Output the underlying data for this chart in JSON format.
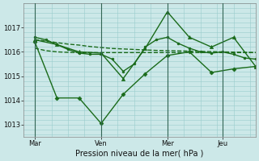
{
  "background_color": "#cce8e8",
  "grid_color": "#99cccc",
  "line_color": "#1a6b1a",
  "xlabel": "Pression niveau de la mer( hPa )",
  "ylim": [
    1012.5,
    1018.0
  ],
  "yticks": [
    1013,
    1014,
    1015,
    1016,
    1017
  ],
  "xtick_labels": [
    "Mar",
    "Ven",
    "Mer",
    "Jeu"
  ],
  "xtick_positions": [
    2,
    14,
    26,
    36
  ],
  "vline_positions": [
    2,
    14,
    26,
    36
  ],
  "xlim": [
    0,
    42
  ],
  "series": [
    {
      "x": [
        2,
        4,
        6,
        8,
        10,
        12,
        14,
        16,
        18,
        20,
        22,
        24,
        26,
        28,
        30,
        32,
        34,
        36,
        38,
        40,
        42
      ],
      "y": [
        1016.15,
        1016.05,
        1016.0,
        1015.98,
        1015.97,
        1015.97,
        1015.97,
        1015.97,
        1015.97,
        1015.97,
        1015.97,
        1015.97,
        1015.97,
        1015.97,
        1015.97,
        1015.97,
        1015.97,
        1015.97,
        1015.97,
        1015.97,
        1015.97
      ],
      "style": "--",
      "marker": null,
      "markersize": 0,
      "linewidth": 1.0
    },
    {
      "x": [
        2,
        4,
        6,
        8,
        10,
        12,
        14,
        16,
        18,
        20,
        22,
        24,
        26,
        28,
        30,
        32,
        34,
        36,
        38,
        40,
        42
      ],
      "y": [
        1016.5,
        1016.45,
        1016.38,
        1016.32,
        1016.28,
        1016.22,
        1016.18,
        1016.14,
        1016.12,
        1016.1,
        1016.08,
        1016.06,
        1016.05,
        1016.04,
        1016.03,
        1016.02,
        1016.01,
        1016.0,
        1015.99,
        1015.98,
        1015.97
      ],
      "style": "--",
      "marker": null,
      "markersize": 0,
      "linewidth": 1.0
    },
    {
      "x": [
        2,
        4,
        6,
        8,
        10,
        12,
        14,
        16,
        18,
        20,
        22,
        24,
        26,
        28,
        30,
        32,
        34,
        36,
        38,
        40,
        42
      ],
      "y": [
        1016.6,
        1016.5,
        1016.3,
        1016.1,
        1015.95,
        1015.9,
        1015.9,
        1015.7,
        1015.2,
        1015.5,
        1016.2,
        1016.5,
        1016.6,
        1016.35,
        1016.15,
        1016.0,
        1015.95,
        1016.0,
        1015.9,
        1015.75,
        1015.7
      ],
      "style": "-",
      "marker": "o",
      "markersize": 2.0,
      "linewidth": 1.0
    },
    {
      "x": [
        2,
        6,
        10,
        14,
        18,
        22,
        26,
        30,
        34,
        38,
        42
      ],
      "y": [
        1016.5,
        1016.3,
        1016.0,
        1015.95,
        1014.9,
        1016.15,
        1017.65,
        1016.6,
        1016.2,
        1016.6,
        1015.4
      ],
      "style": "-",
      "marker": "^",
      "markersize": 3.0,
      "linewidth": 1.0
    },
    {
      "x": [
        2,
        6,
        10,
        14,
        18,
        22,
        26,
        30,
        34,
        38,
        42
      ],
      "y": [
        1016.4,
        1014.1,
        1014.1,
        1013.05,
        1014.25,
        1015.1,
        1015.85,
        1016.0,
        1015.15,
        1015.3,
        1015.4
      ],
      "style": "-",
      "marker": "D",
      "markersize": 2.5,
      "linewidth": 1.0
    }
  ]
}
